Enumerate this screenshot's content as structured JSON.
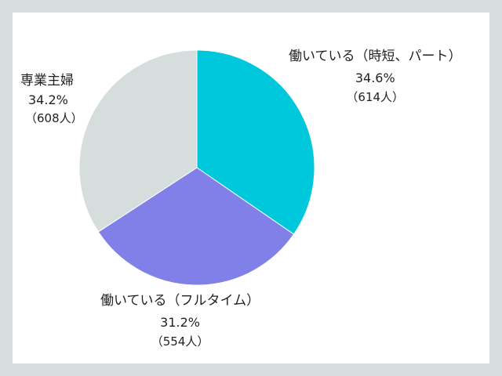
{
  "chart_data": {
    "type": "pie",
    "slices": [
      {
        "label": "働いている（時短、パート）",
        "percent": "34.6%",
        "count": "（614人）",
        "value": 34.6,
        "color": "#00c8dc"
      },
      {
        "label": "働いている（フルタイム）",
        "percent": "31.2%",
        "count": "（554人）",
        "value": 31.2,
        "color": "#8080e8"
      },
      {
        "label": "専業主婦",
        "percent": "34.2%",
        "count": "（608人）",
        "value": 34.2,
        "color": "#d5dedd"
      }
    ]
  }
}
